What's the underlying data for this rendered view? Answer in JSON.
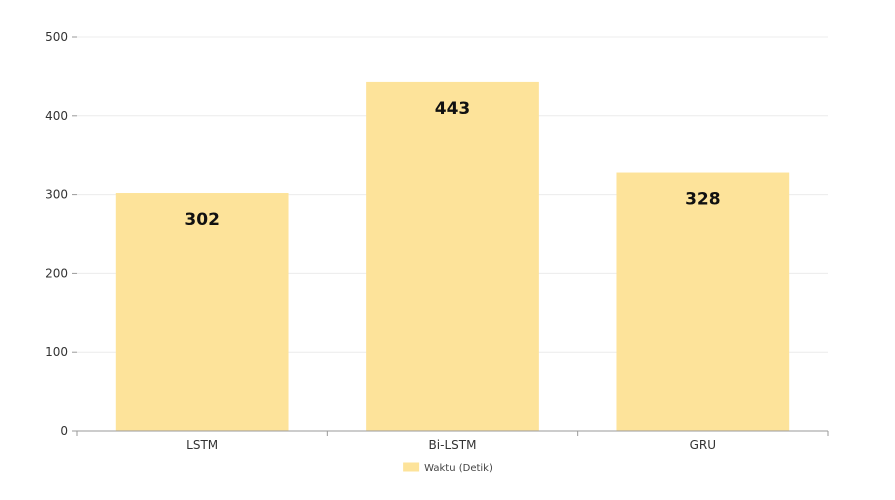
{
  "chart_data": {
    "type": "bar",
    "categories": [
      "LSTM",
      "Bi-LSTM",
      "GRU"
    ],
    "series": [
      {
        "name": "Waktu (Detik)",
        "values": [
          302,
          443,
          328
        ],
        "color": "#fde39a"
      }
    ],
    "data_labels": [
      "302",
      "443",
      "328"
    ],
    "ylim": [
      0,
      500
    ],
    "yticks": [
      0,
      100,
      200,
      300,
      400,
      500
    ],
    "grid": true,
    "legend_position": "bottom"
  },
  "colors": {
    "bar": "#fde39a",
    "grid": "#ececec",
    "axis": "#9a9a9a"
  }
}
